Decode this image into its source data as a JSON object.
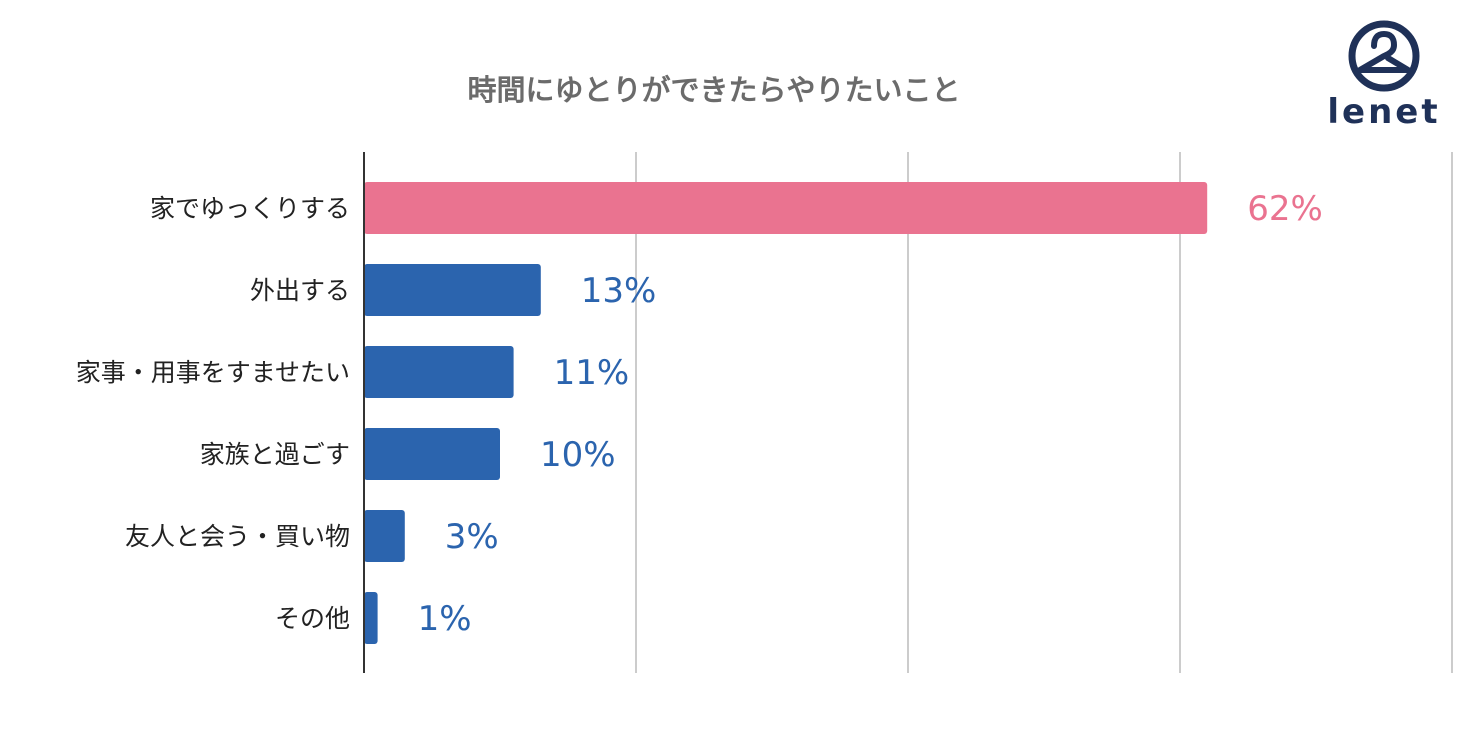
{
  "chart_data": {
    "type": "bar",
    "orientation": "horizontal",
    "title": "時間にゆとりができたらやりたいこと",
    "categories": [
      "家でゆっくりする",
      "外出する",
      "家事・用事をすませたい",
      "家族と過ごす",
      "友人と会う・買い物",
      "その他"
    ],
    "values": [
      62,
      13,
      11,
      10,
      3,
      1
    ],
    "value_labels": [
      "62%",
      "13%",
      "11%",
      "10%",
      "3%",
      "1%"
    ],
    "unit": "%",
    "xlim": [
      0,
      80
    ],
    "grid": true,
    "highlight_index": 0,
    "colors": {
      "highlight": "#ea7390",
      "default": "#2b64ae",
      "grid": "#cccccc",
      "axis": "#333333"
    }
  },
  "logo": {
    "text": "lenet",
    "color": "#1f3158"
  }
}
